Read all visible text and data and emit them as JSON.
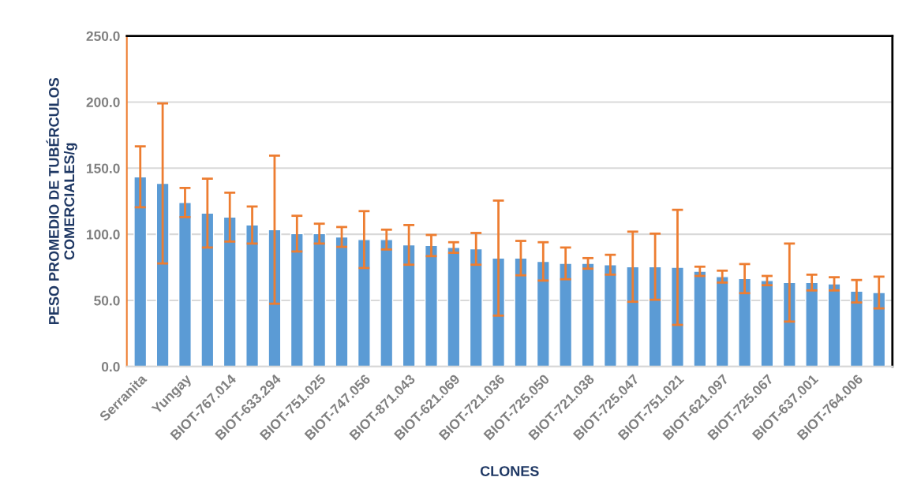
{
  "chart_data": {
    "type": "bar",
    "xlabel": "CLONES",
    "ylabel": "PESO PROMEDIO DE TUBÉRCULOS\nCOMERCIALES/g",
    "categories": [
      "Serranita",
      null,
      "Yungay",
      null,
      "BIOT-767.014",
      null,
      "BIOT-633.294",
      null,
      "BIOT-751.025",
      null,
      "BIOT-747.056",
      null,
      "BIOT-871.043",
      null,
      "BIOT-621.069",
      null,
      "BIOT-721.036",
      null,
      "BIOT-725.050",
      null,
      "BIOT-721.038",
      null,
      "BIOT-725.047",
      null,
      "BIOT-751.021",
      null,
      "BIOT-621.097",
      null,
      "BIOT-725.067",
      null,
      "BIOT-637.001",
      null,
      "BIOT-764.006",
      null
    ],
    "series": [
      {
        "color": "#5b9bd5",
        "values": [
          143.5,
          138.5,
          124,
          116,
          113,
          107,
          103.5,
          100.5,
          100.5,
          98,
          96,
          96,
          92,
          91.5,
          90,
          89,
          82,
          82,
          79.5,
          78,
          78,
          77,
          75.5,
          75.5,
          75,
          72,
          68,
          66.5,
          65,
          63.5,
          63.5,
          62.5,
          57,
          56
        ],
        "errors": [
          23,
          60.5,
          11,
          26,
          18.5,
          14,
          56,
          13.5,
          7.5,
          7.5,
          21.5,
          7.5,
          15,
          8,
          4,
          12,
          43.5,
          13,
          14.5,
          12,
          4,
          7.5,
          26.5,
          25,
          43.5,
          3.5,
          4.5,
          11,
          3.5,
          29.5,
          6,
          5,
          8.5,
          12
        ]
      }
    ],
    "ylim": [
      0,
      250
    ],
    "yticks": [
      {
        "value": 0,
        "label": "0.0"
      },
      {
        "value": 50,
        "label": "50.0"
      },
      {
        "value": 100,
        "label": "100.0"
      },
      {
        "value": 150,
        "label": "150.0"
      },
      {
        "value": 200,
        "label": "200.0"
      },
      {
        "value": 250,
        "label": "250.0"
      }
    ],
    "grid": "y",
    "legend": false
  }
}
